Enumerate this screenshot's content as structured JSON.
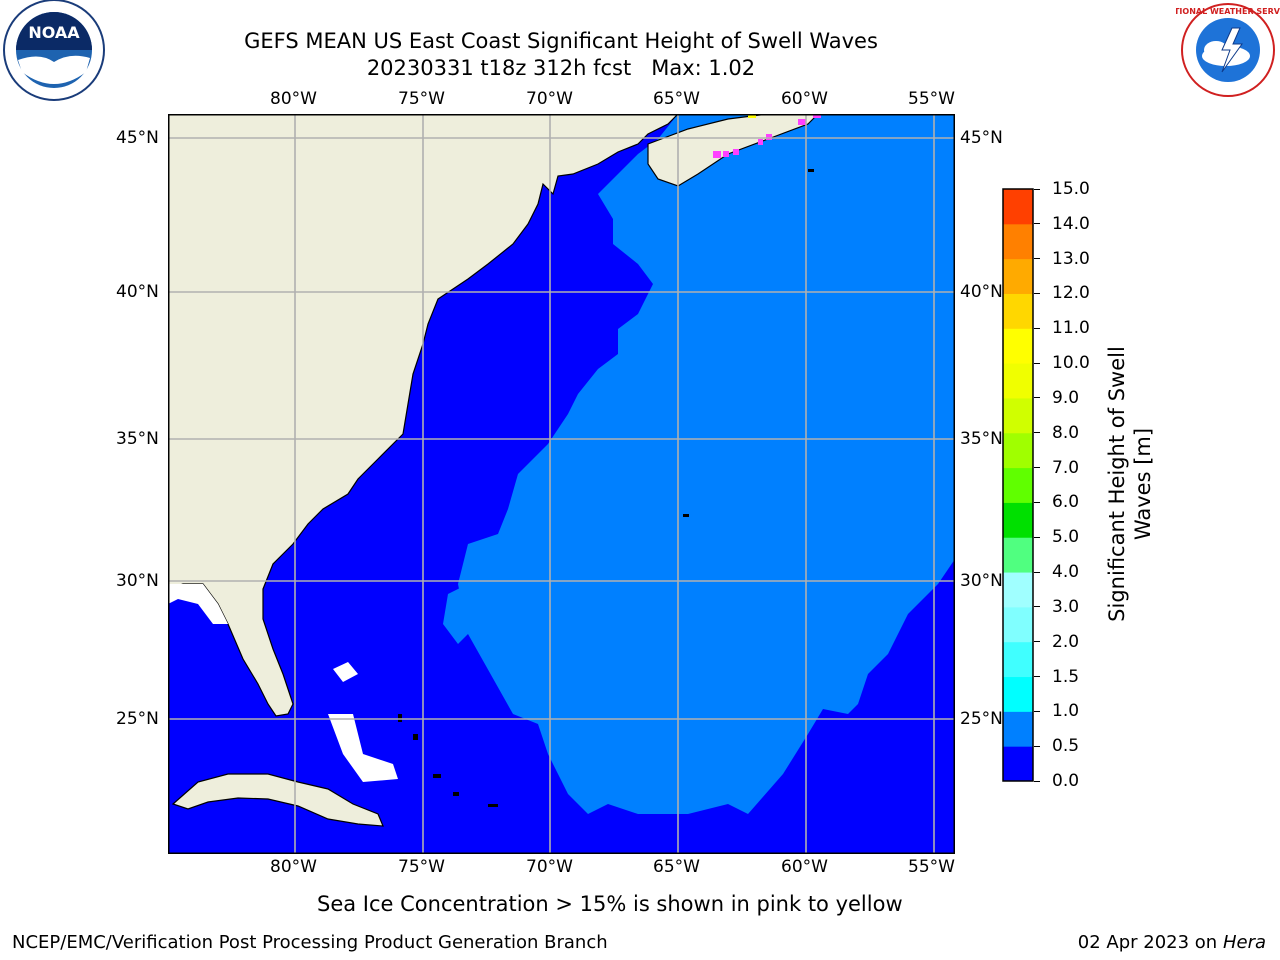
{
  "title": {
    "line1": "GEFS MEAN US East Coast Significant Height of Swell Waves",
    "line2": "20230331 t18z 312h fcst   Max: 1.02"
  },
  "logos": {
    "left_icon": "noaa-logo-icon",
    "left_text": "NOAA",
    "right_icon": "nws-logo-icon",
    "right_text": "NATIONAL WEATHER SERVICE"
  },
  "map": {
    "lon_labels": [
      "80°W",
      "75°W",
      "70°W",
      "65°W",
      "60°W",
      "55°W"
    ],
    "lat_labels": [
      "45°N",
      "40°N",
      "35°N",
      "30°N",
      "25°N"
    ],
    "colors": {
      "land": "#eeeedc",
      "ocean_0_05": "#0000ff",
      "ocean_05_10": "#0080ff",
      "ice": "#ff40ff",
      "grid": "#b0b0b0",
      "coast": "#000000"
    }
  },
  "colorbar": {
    "label_line1": "Significant Height of Swell",
    "label_line2": "Waves [m]",
    "ticks": [
      "0.0",
      "0.5",
      "1.0",
      "1.5",
      "2.0",
      "3.0",
      "4.0",
      "5.0",
      "6.0",
      "7.0",
      "8.0",
      "9.0",
      "10.0",
      "11.0",
      "12.0",
      "13.0",
      "14.0",
      "15.0"
    ],
    "colors": [
      "#0000ff",
      "#0080ff",
      "#00ffff",
      "#40ffff",
      "#80ffff",
      "#a0ffff",
      "#50ff80",
      "#00e000",
      "#60ff00",
      "#a0ff00",
      "#d0ff00",
      "#f0ff00",
      "#ffff00",
      "#ffd700",
      "#ffaa00",
      "#ff8000",
      "#ff4000",
      "#ff0000"
    ]
  },
  "note": "Sea Ice Concentration > 15% is shown in pink to yellow",
  "footer": {
    "left": "NCEP/EMC/Verification Post Processing Product Generation Branch",
    "date": "02 Apr 2023 on ",
    "machine": "Hera"
  }
}
